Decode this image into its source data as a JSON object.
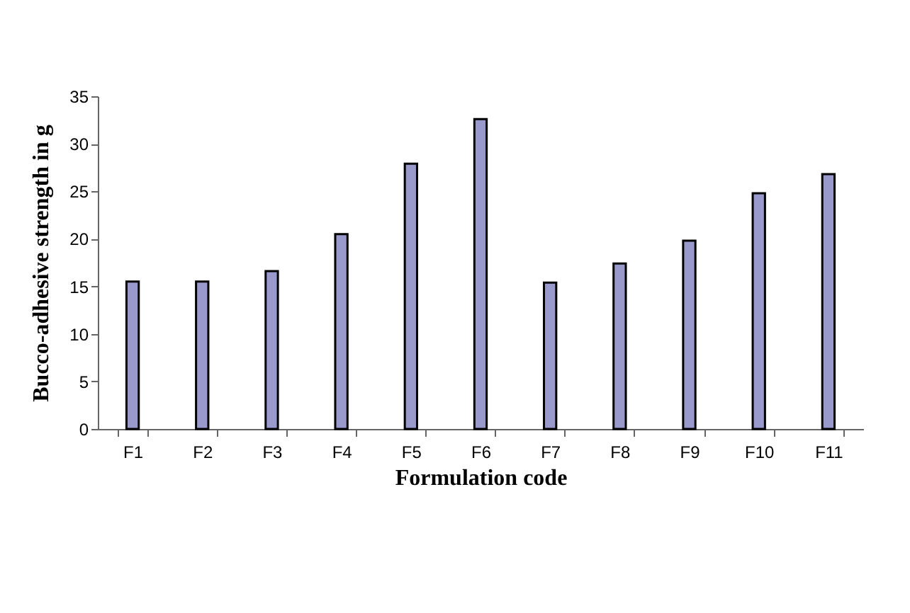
{
  "chart_data": {
    "type": "bar",
    "xlabel": "Formulation code",
    "ylabel": "Bucco-adhesive strength in g",
    "categories": [
      "F1",
      "F2",
      "F3",
      "F4",
      "F5",
      "F6",
      "F7",
      "F8",
      "F9",
      "F10",
      "F11"
    ],
    "values": [
      15.5,
      15.5,
      16.6,
      20.5,
      27.9,
      32.6,
      15.4,
      17.4,
      19.8,
      24.8,
      26.8
    ],
    "color": "#9999cc",
    "ylim": [
      0,
      35
    ],
    "yticks": [
      0,
      5,
      10,
      15,
      20,
      25,
      30,
      35
    ],
    "grid": false
  }
}
